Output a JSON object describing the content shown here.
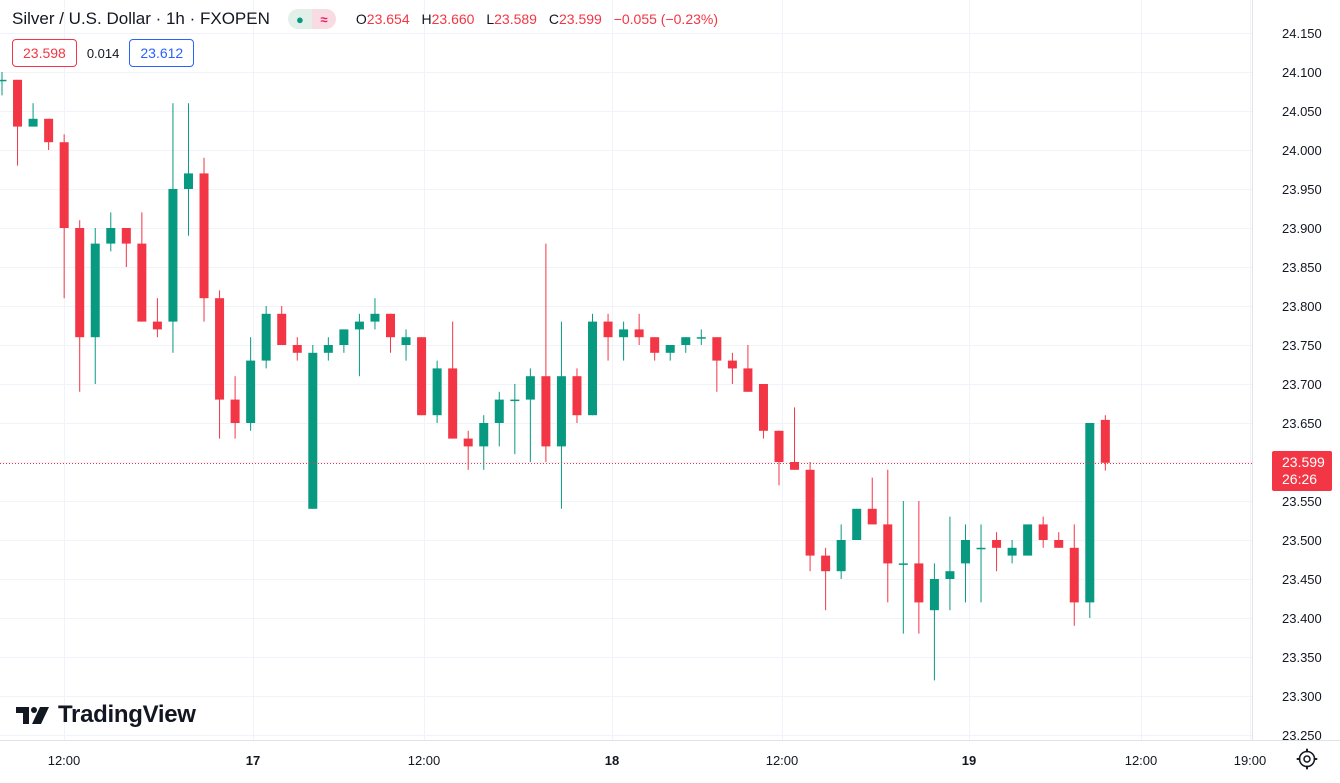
{
  "header": {
    "title": "Silver / U.S. Dollar · 1h · FXOPEN",
    "indicator_icons": [
      "dot-icon",
      "approx-icon"
    ],
    "ohlc": [
      {
        "k": "O",
        "v": "23.654"
      },
      {
        "k": "H",
        "v": "23.660"
      },
      {
        "k": "L",
        "v": "23.589"
      },
      {
        "k": "C",
        "v": "23.599"
      },
      {
        "k": "",
        "v": "−0.055 (−0.23%)"
      }
    ]
  },
  "quote": {
    "sell": "23.598",
    "spread": "0.014",
    "buy": "23.612"
  },
  "last_price": {
    "price": "23.599",
    "countdown": "26:26",
    "value": 23.599
  },
  "brand": {
    "name": "TradingView"
  },
  "colors": {
    "up": "#089981",
    "down": "#f23645",
    "grid": "#f0f3fa",
    "text": "#131722"
  },
  "chart_data": {
    "type": "candlestick",
    "y_ticks": [
      "24.150",
      "24.100",
      "24.050",
      "24.000",
      "23.950",
      "23.900",
      "23.850",
      "23.800",
      "23.750",
      "23.700",
      "23.650",
      "23.600",
      "23.550",
      "23.500",
      "23.450",
      "23.400",
      "23.350",
      "23.300",
      "23.250"
    ],
    "ylim": [
      23.23,
      24.18
    ],
    "x_ticks": [
      {
        "label": "12:00",
        "bold": false
      },
      {
        "label": "17",
        "bold": true
      },
      {
        "label": "12:00",
        "bold": false
      },
      {
        "label": "18",
        "bold": true
      },
      {
        "label": "12:00",
        "bold": false
      },
      {
        "label": "19",
        "bold": true
      },
      {
        "label": "12:00",
        "bold": false
      },
      {
        "label": "19:00",
        "bold": false
      }
    ],
    "grid": true,
    "candles": [
      {
        "o": 24.09,
        "h": 24.1,
        "l": 24.07,
        "c": 24.09
      },
      {
        "o": 24.09,
        "h": 24.09,
        "l": 23.98,
        "c": 24.03
      },
      {
        "o": 24.03,
        "h": 24.06,
        "l": 24.03,
        "c": 24.04
      },
      {
        "o": 24.04,
        "h": 24.04,
        "l": 24.0,
        "c": 24.01
      },
      {
        "o": 24.01,
        "h": 24.02,
        "l": 23.81,
        "c": 23.9
      },
      {
        "o": 23.9,
        "h": 23.91,
        "l": 23.69,
        "c": 23.76
      },
      {
        "o": 23.76,
        "h": 23.9,
        "l": 23.7,
        "c": 23.88
      },
      {
        "o": 23.88,
        "h": 23.92,
        "l": 23.87,
        "c": 23.9
      },
      {
        "o": 23.9,
        "h": 23.9,
        "l": 23.85,
        "c": 23.88
      },
      {
        "o": 23.88,
        "h": 23.92,
        "l": 23.78,
        "c": 23.78
      },
      {
        "o": 23.78,
        "h": 23.81,
        "l": 23.76,
        "c": 23.77
      },
      {
        "o": 23.78,
        "h": 24.06,
        "l": 23.74,
        "c": 23.95
      },
      {
        "o": 23.95,
        "h": 24.06,
        "l": 23.89,
        "c": 23.97
      },
      {
        "o": 23.97,
        "h": 23.99,
        "l": 23.78,
        "c": 23.81
      },
      {
        "o": 23.81,
        "h": 23.82,
        "l": 23.63,
        "c": 23.68
      },
      {
        "o": 23.68,
        "h": 23.71,
        "l": 23.63,
        "c": 23.65
      },
      {
        "o": 23.65,
        "h": 23.76,
        "l": 23.64,
        "c": 23.73
      },
      {
        "o": 23.73,
        "h": 23.8,
        "l": 23.72,
        "c": 23.79
      },
      {
        "o": 23.79,
        "h": 23.8,
        "l": 23.75,
        "c": 23.75
      },
      {
        "o": 23.75,
        "h": 23.76,
        "l": 23.73,
        "c": 23.74
      },
      {
        "o": 23.54,
        "h": 23.75,
        "l": 23.54,
        "c": 23.74
      },
      {
        "o": 23.74,
        "h": 23.76,
        "l": 23.73,
        "c": 23.75
      },
      {
        "o": 23.75,
        "h": 23.77,
        "l": 23.74,
        "c": 23.77
      },
      {
        "o": 23.77,
        "h": 23.79,
        "l": 23.71,
        "c": 23.78
      },
      {
        "o": 23.78,
        "h": 23.81,
        "l": 23.77,
        "c": 23.79
      },
      {
        "o": 23.79,
        "h": 23.79,
        "l": 23.74,
        "c": 23.76
      },
      {
        "o": 23.75,
        "h": 23.77,
        "l": 23.73,
        "c": 23.76
      },
      {
        "o": 23.76,
        "h": 23.76,
        "l": 23.66,
        "c": 23.66
      },
      {
        "o": 23.66,
        "h": 23.73,
        "l": 23.65,
        "c": 23.72
      },
      {
        "o": 23.72,
        "h": 23.78,
        "l": 23.63,
        "c": 23.63
      },
      {
        "o": 23.63,
        "h": 23.64,
        "l": 23.59,
        "c": 23.62
      },
      {
        "o": 23.62,
        "h": 23.66,
        "l": 23.59,
        "c": 23.65
      },
      {
        "o": 23.65,
        "h": 23.69,
        "l": 23.62,
        "c": 23.68
      },
      {
        "o": 23.68,
        "h": 23.7,
        "l": 23.61,
        "c": 23.68
      },
      {
        "o": 23.68,
        "h": 23.72,
        "l": 23.6,
        "c": 23.71
      },
      {
        "o": 23.71,
        "h": 23.88,
        "l": 23.6,
        "c": 23.62
      },
      {
        "o": 23.62,
        "h": 23.78,
        "l": 23.54,
        "c": 23.71
      },
      {
        "o": 23.71,
        "h": 23.72,
        "l": 23.65,
        "c": 23.66
      },
      {
        "o": 23.66,
        "h": 23.79,
        "l": 23.66,
        "c": 23.78
      },
      {
        "o": 23.78,
        "h": 23.79,
        "l": 23.73,
        "c": 23.76
      },
      {
        "o": 23.76,
        "h": 23.78,
        "l": 23.73,
        "c": 23.77
      },
      {
        "o": 23.77,
        "h": 23.79,
        "l": 23.75,
        "c": 23.76
      },
      {
        "o": 23.76,
        "h": 23.76,
        "l": 23.73,
        "c": 23.74
      },
      {
        "o": 23.74,
        "h": 23.75,
        "l": 23.73,
        "c": 23.75
      },
      {
        "o": 23.75,
        "h": 23.76,
        "l": 23.74,
        "c": 23.76
      },
      {
        "o": 23.76,
        "h": 23.77,
        "l": 23.75,
        "c": 23.76
      },
      {
        "o": 23.76,
        "h": 23.76,
        "l": 23.69,
        "c": 23.73
      },
      {
        "o": 23.73,
        "h": 23.74,
        "l": 23.7,
        "c": 23.72
      },
      {
        "o": 23.72,
        "h": 23.75,
        "l": 23.69,
        "c": 23.69
      },
      {
        "o": 23.7,
        "h": 23.7,
        "l": 23.63,
        "c": 23.64
      },
      {
        "o": 23.64,
        "h": 23.64,
        "l": 23.57,
        "c": 23.6
      },
      {
        "o": 23.6,
        "h": 23.67,
        "l": 23.59,
        "c": 23.59
      },
      {
        "o": 23.59,
        "h": 23.6,
        "l": 23.46,
        "c": 23.48
      },
      {
        "o": 23.48,
        "h": 23.49,
        "l": 23.41,
        "c": 23.46
      },
      {
        "o": 23.46,
        "h": 23.52,
        "l": 23.45,
        "c": 23.5
      },
      {
        "o": 23.5,
        "h": 23.54,
        "l": 23.5,
        "c": 23.54
      },
      {
        "o": 23.54,
        "h": 23.58,
        "l": 23.52,
        "c": 23.52
      },
      {
        "o": 23.52,
        "h": 23.59,
        "l": 23.42,
        "c": 23.47
      },
      {
        "o": 23.47,
        "h": 23.55,
        "l": 23.38,
        "c": 23.47
      },
      {
        "o": 23.47,
        "h": 23.55,
        "l": 23.38,
        "c": 23.42
      },
      {
        "o": 23.41,
        "h": 23.47,
        "l": 23.32,
        "c": 23.45
      },
      {
        "o": 23.45,
        "h": 23.53,
        "l": 23.41,
        "c": 23.46
      },
      {
        "o": 23.47,
        "h": 23.52,
        "l": 23.42,
        "c": 23.5
      },
      {
        "o": 23.49,
        "h": 23.52,
        "l": 23.42,
        "c": 23.49
      },
      {
        "o": 23.5,
        "h": 23.51,
        "l": 23.46,
        "c": 23.49
      },
      {
        "o": 23.48,
        "h": 23.5,
        "l": 23.47,
        "c": 23.49
      },
      {
        "o": 23.48,
        "h": 23.52,
        "l": 23.48,
        "c": 23.52
      },
      {
        "o": 23.52,
        "h": 23.53,
        "l": 23.49,
        "c": 23.5
      },
      {
        "o": 23.5,
        "h": 23.51,
        "l": 23.49,
        "c": 23.49
      },
      {
        "o": 23.49,
        "h": 23.52,
        "l": 23.39,
        "c": 23.42
      },
      {
        "o": 23.42,
        "h": 23.65,
        "l": 23.4,
        "c": 23.65
      },
      {
        "o": 23.654,
        "h": 23.66,
        "l": 23.589,
        "c": 23.599
      }
    ]
  }
}
